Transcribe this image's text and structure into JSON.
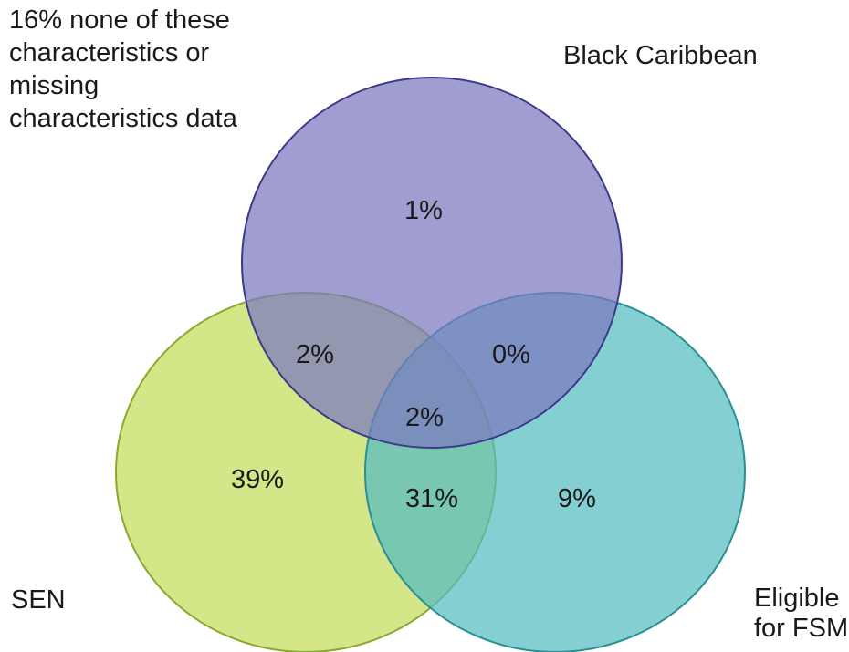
{
  "outside_note": {
    "lines": [
      "16% none of these",
      "characteristics or",
      "missing",
      "characteristics data"
    ]
  },
  "sets": {
    "black_caribbean": {
      "label": "Black Caribbean",
      "color": "#7b78bf",
      "stroke": "#3d3a8a"
    },
    "sen": {
      "label": "SEN",
      "color": "#c2dc5a",
      "stroke": "#8aa82e"
    },
    "fsm": {
      "label_lines": [
        "Eligible",
        "for FSM"
      ],
      "color": "#55bcc0",
      "stroke": "#2a8f93"
    }
  },
  "regions": {
    "black_caribbean_only": "1%",
    "sen_and_black_caribbean": "2%",
    "black_caribbean_and_fsm": "0%",
    "all_three": "2%",
    "sen_only": "39%",
    "sen_and_fsm": "31%",
    "fsm_only": "9%"
  }
}
